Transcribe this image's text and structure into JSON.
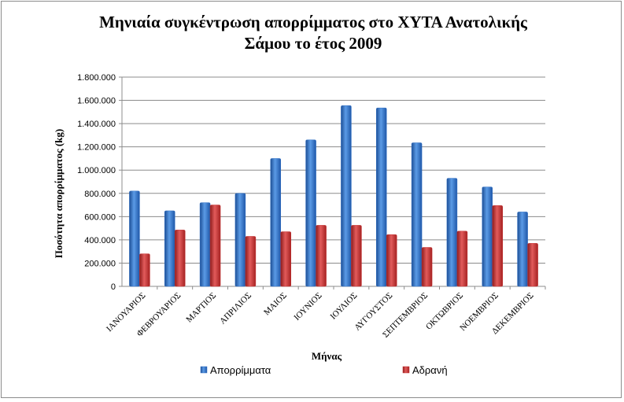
{
  "chart_data": {
    "type": "bar",
    "title_line1": "Μηνιαία συγκέντρωση απορρίμματος στο ΧΥΤΑ Ανατολικής",
    "title_line2": "Σάμου το έτος 2009",
    "xlabel": "Μήνας",
    "ylabel": "Ποσότητα απορρίμματος (kg)",
    "ylim": [
      0,
      1800000
    ],
    "ytick_step": 200000,
    "ytick_labels": [
      "0",
      "200.000",
      "400.000",
      "600.000",
      "800.000",
      "1.000.000",
      "1.200.000",
      "1.400.000",
      "1.600.000",
      "1.800.000"
    ],
    "grid": true,
    "legend_position": "bottom",
    "categories": [
      "ΙΑΝΟΥΑΡΙΟΣ",
      "ΦΕΒΡΟΥΑΡΙΟΣ",
      "ΜΑΡΤΙΟΣ",
      "ΑΠΡΙΛΙΟΣ",
      "ΜΑΙΟΣ",
      "ΙΟΥΝΙΟΣ",
      "ΙΟΥΛΙΟΣ",
      "ΑΥΓΟΥΣΤΟΣ",
      "ΣΕΠΤΕΜΒΡΙΟΣ",
      "ΟΚΤΩΒΡΙΟΣ",
      "ΝΟΕΜΒΡΙΟΣ",
      "ΔΕΚΕΜΒΡΙΟΣ"
    ],
    "series": [
      {
        "name": "Απορρίμματα",
        "color": "#2f6fc4",
        "values": [
          820000,
          650000,
          720000,
          800000,
          1100000,
          1260000,
          1555000,
          1535000,
          1235000,
          930000,
          855000,
          640000
        ]
      },
      {
        "name": "Αδρανή",
        "color": "#c42f2f",
        "values": [
          280000,
          485000,
          700000,
          430000,
          470000,
          525000,
          525000,
          445000,
          335000,
          475000,
          695000,
          370000
        ]
      }
    ]
  }
}
